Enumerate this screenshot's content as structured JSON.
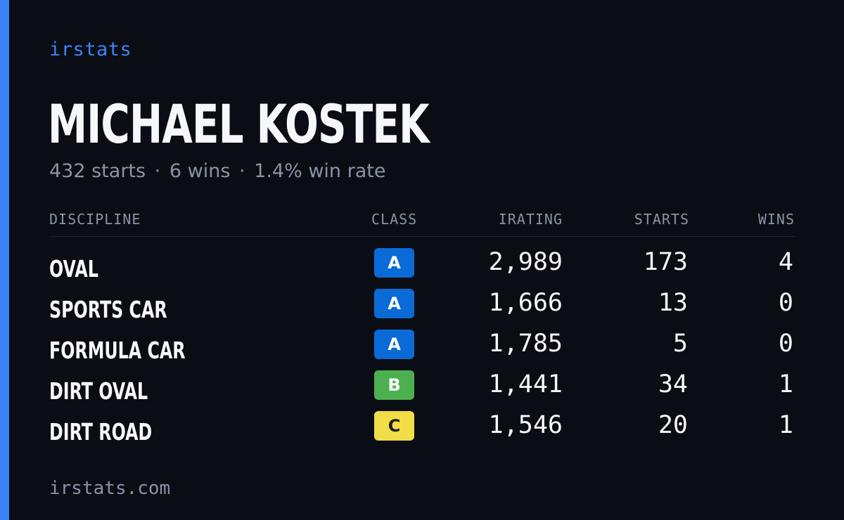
{
  "brand": "irstats",
  "driver": {
    "name": "MICHAEL KOSTEK",
    "summary": {
      "starts": "432 starts",
      "wins": "6 wins",
      "win_rate": "1.4% win rate",
      "separator": "·"
    }
  },
  "table": {
    "headers": {
      "discipline": "DISCIPLINE",
      "class": "CLASS",
      "irating": "IRATING",
      "starts": "STARTS",
      "wins": "WINS"
    },
    "rows": [
      {
        "discipline": "OVAL",
        "class": "A",
        "irating": "2,989",
        "starts": "173",
        "wins": "4"
      },
      {
        "discipline": "SPORTS CAR",
        "class": "A",
        "irating": "1,666",
        "starts": "13",
        "wins": "0"
      },
      {
        "discipline": "FORMULA CAR",
        "class": "A",
        "irating": "1,785",
        "starts": "5",
        "wins": "0"
      },
      {
        "discipline": "DIRT OVAL",
        "class": "B",
        "irating": "1,441",
        "starts": "34",
        "wins": "1"
      },
      {
        "discipline": "DIRT ROAD",
        "class": "C",
        "irating": "1,546",
        "starts": "20",
        "wins": "1"
      }
    ]
  },
  "class_colors": {
    "A": "#0a6bd6",
    "B": "#4cb050",
    "C": "#f0dd47"
  },
  "accent_color": "#3b82f6",
  "footer": "irstats.com"
}
